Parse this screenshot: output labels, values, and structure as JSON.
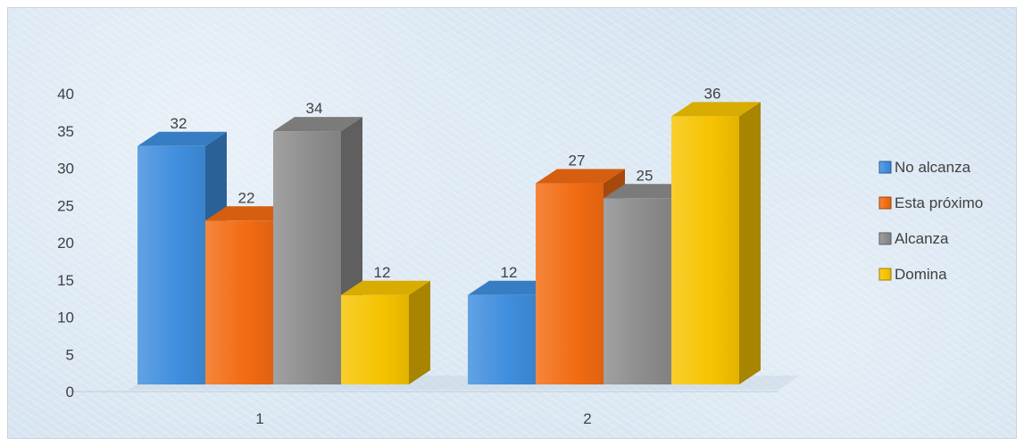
{
  "chart_data": {
    "type": "bar",
    "categories": [
      "1",
      "2"
    ],
    "series": [
      {
        "name": "No alcanza",
        "values": [
          32,
          12
        ],
        "color": "#3f8ede"
      },
      {
        "name": "Esta próximo",
        "values": [
          22,
          27
        ],
        "color": "#f26b12"
      },
      {
        "name": "Alcanza",
        "values": [
          34,
          25
        ],
        "color": "#8c8c8c"
      },
      {
        "name": "Domina",
        "values": [
          12,
          36
        ],
        "color": "#f6c300"
      }
    ],
    "yticks": [
      "0",
      "5",
      "10",
      "15",
      "20",
      "25",
      "30",
      "35",
      "40"
    ],
    "ylim": [
      0,
      40
    ],
    "title": "",
    "xlabel": "",
    "ylabel": "",
    "legend": "right",
    "grid": false,
    "style": "3d-column"
  }
}
